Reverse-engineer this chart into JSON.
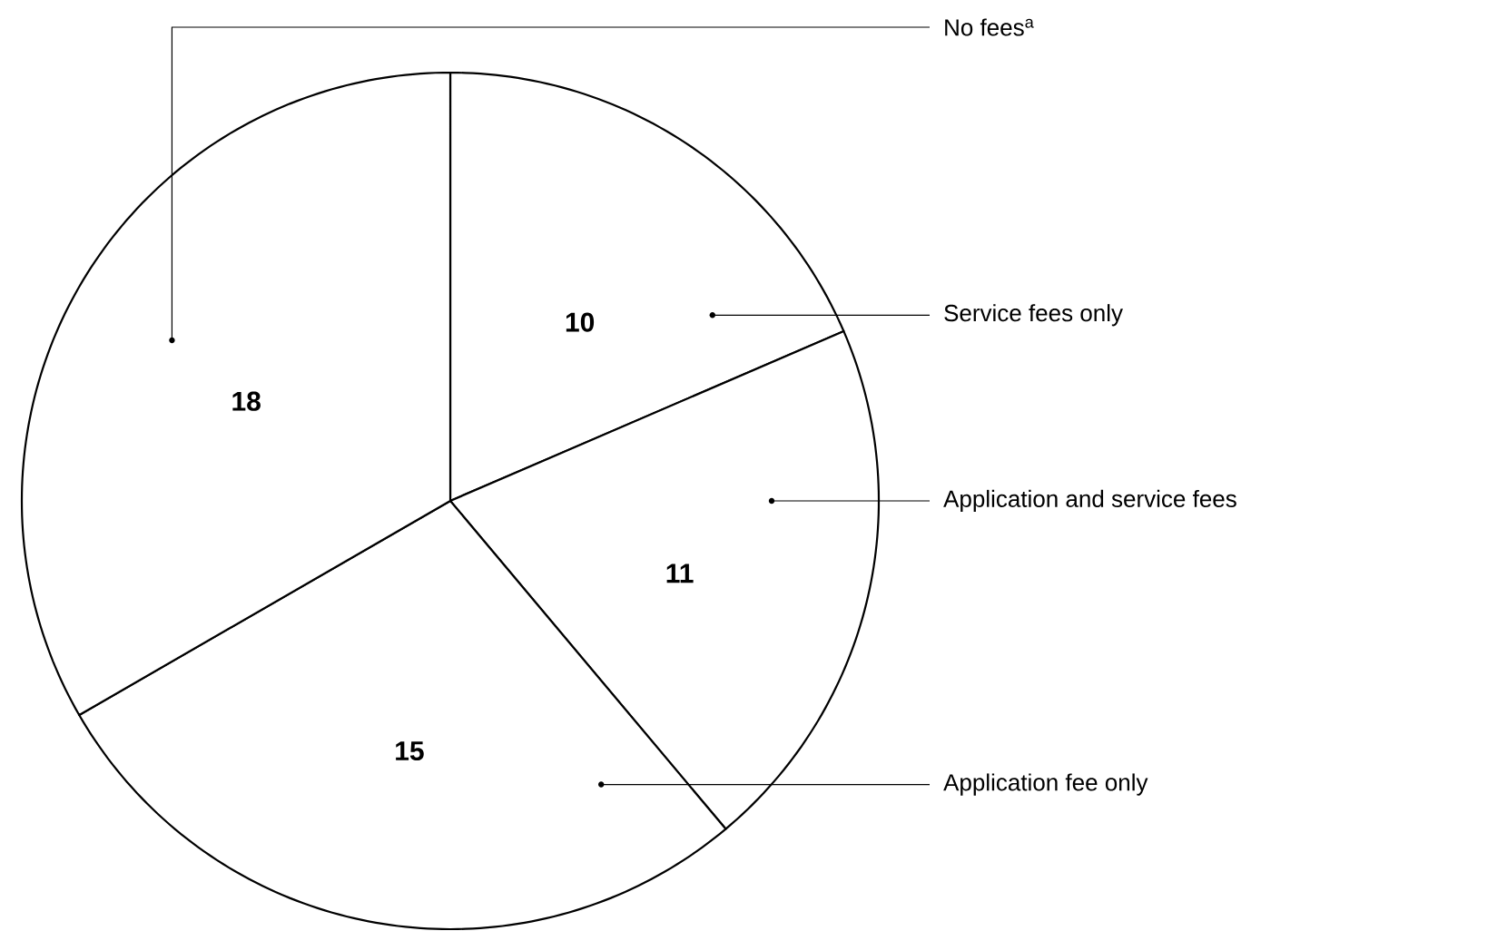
{
  "chart_data": {
    "type": "pie",
    "categories": [
      "Service fees only",
      "Application and service fees",
      "Application fee only",
      "No fees$^{a}$"
    ],
    "values": [
      10,
      11,
      15,
      18
    ],
    "colors": [
      "#ffffff",
      "#ffffff",
      "#ffffff",
      "#ffffff"
    ],
    "data_labels": true
  }
}
